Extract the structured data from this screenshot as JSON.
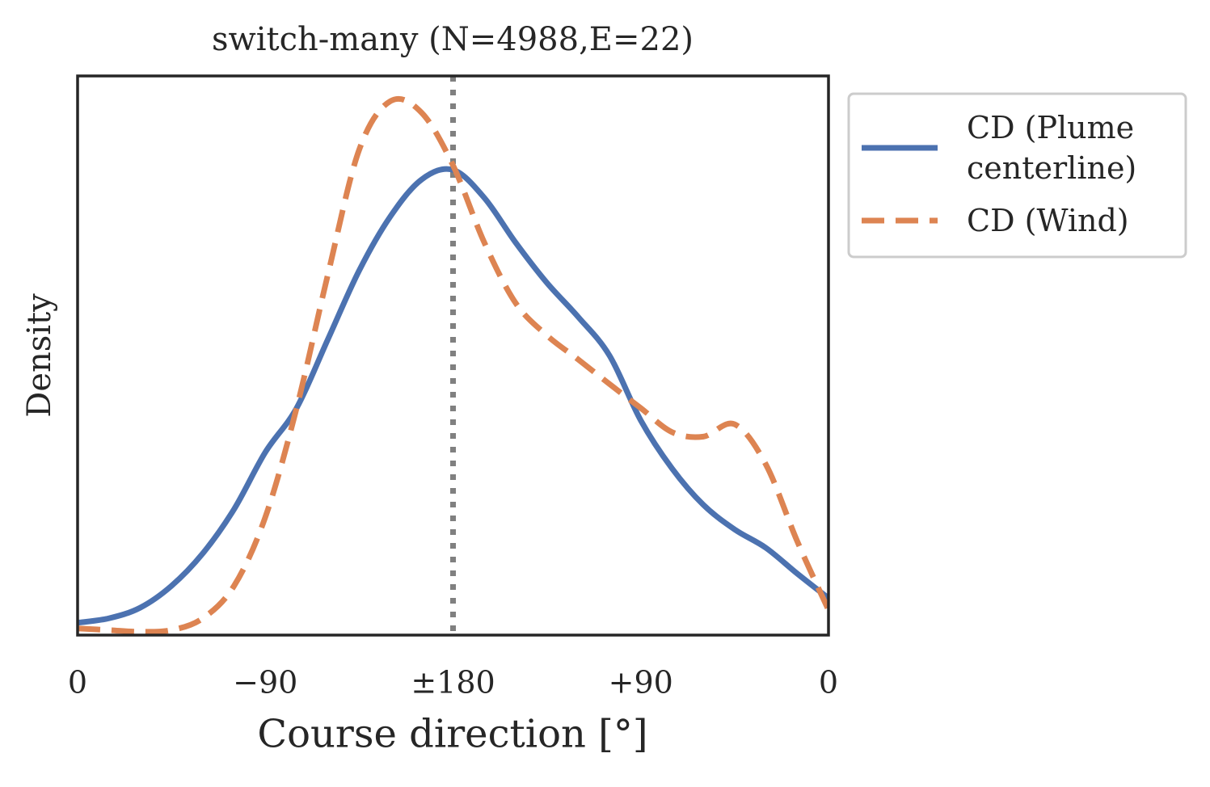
{
  "chart_data": {
    "type": "line",
    "title": "switch-many (N=4988,E=22)",
    "xlabel": "Course direction [°]",
    "ylabel": "Density",
    "x": [
      0,
      15,
      30,
      45,
      60,
      75,
      90,
      105,
      120,
      135,
      150,
      165,
      180,
      195,
      210,
      225,
      240,
      255,
      270,
      285,
      300,
      315,
      330,
      345,
      360
    ],
    "series": [
      {
        "name": "CD (Plume centerline)",
        "color": "#4c72b0",
        "dash": "solid",
        "values": [
          0.022,
          0.03,
          0.049,
          0.088,
          0.146,
          0.225,
          0.327,
          0.406,
          0.529,
          0.652,
          0.749,
          0.815,
          0.832,
          0.782,
          0.702,
          0.63,
          0.569,
          0.5,
          0.384,
          0.298,
          0.233,
          0.189,
          0.156,
          0.11,
          0.066
        ]
      },
      {
        "name": "CD (Wind)",
        "color": "#dd8452",
        "dash": "dashed",
        "values": [
          0.012,
          0.009,
          0.006,
          0.009,
          0.03,
          0.088,
          0.211,
          0.406,
          0.645,
          0.868,
          0.955,
          0.934,
          0.84,
          0.702,
          0.594,
          0.536,
          0.493,
          0.449,
          0.406,
          0.363,
          0.355,
          0.377,
          0.305,
          0.168,
          0.045
        ]
      }
    ],
    "xlim": [
      0,
      360
    ],
    "xticks": [
      0,
      {
        "value": 90,
        "label": "−90"
      },
      {
        "value": 180,
        "label": "±180"
      },
      {
        "value": 270,
        "label": "+90"
      },
      {
        "value": 360,
        "label": "0"
      }
    ],
    "ylim": [
      0,
      1
    ],
    "vline": {
      "x": 180,
      "color": "#808080"
    },
    "legend": "outside-right",
    "grid": false
  }
}
